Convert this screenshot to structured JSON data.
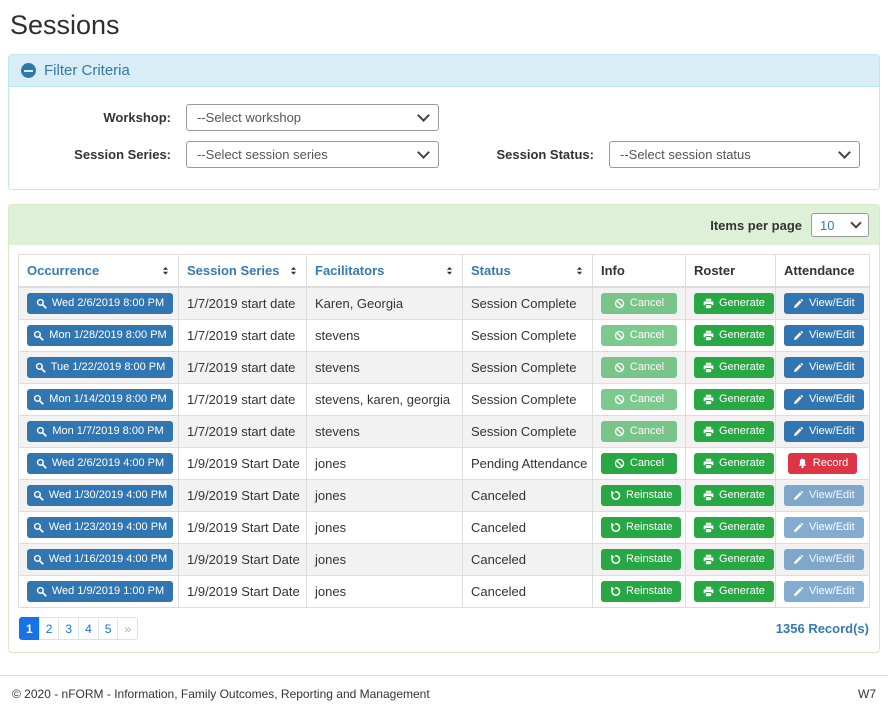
{
  "page_title": "Sessions",
  "filter": {
    "title": "Filter Criteria",
    "workshop": {
      "label": "Workshop:",
      "value": "--Select workshop"
    },
    "session_series": {
      "label": "Session Series:",
      "value": "--Select session series"
    },
    "session_status": {
      "label": "Session Status:",
      "value": "--Select session status"
    }
  },
  "table": {
    "items_per_page_label": "Items per page",
    "items_per_page_value": "10",
    "columns": [
      {
        "label": "Occurrence",
        "sortable": true
      },
      {
        "label": "Session Series",
        "sortable": true
      },
      {
        "label": "Facilitators",
        "sortable": true
      },
      {
        "label": "Status",
        "sortable": true
      },
      {
        "label": "Info",
        "sortable": false
      },
      {
        "label": "Roster",
        "sortable": false
      },
      {
        "label": "Attendance",
        "sortable": false
      }
    ],
    "rows": [
      {
        "occurrence": "Wed 2/6/2019 8:00 PM",
        "series": "1/7/2019 start date",
        "facilitators": "Karen, Georgia",
        "status": "Session Complete",
        "info": {
          "label": "Cancel",
          "icon": "ban-icon",
          "variant": "success",
          "disabled": true
        },
        "roster": {
          "label": "Generate",
          "icon": "printer-icon",
          "variant": "success",
          "disabled": false
        },
        "attendance": {
          "label": "View/Edit",
          "icon": "pencil-icon",
          "variant": "primary",
          "disabled": false
        }
      },
      {
        "occurrence": "Mon 1/28/2019 8:00 PM",
        "series": "1/7/2019 start date",
        "facilitators": "stevens",
        "status": "Session Complete",
        "info": {
          "label": "Cancel",
          "icon": "ban-icon",
          "variant": "success",
          "disabled": true
        },
        "roster": {
          "label": "Generate",
          "icon": "printer-icon",
          "variant": "success",
          "disabled": false
        },
        "attendance": {
          "label": "View/Edit",
          "icon": "pencil-icon",
          "variant": "primary",
          "disabled": false
        }
      },
      {
        "occurrence": "Tue 1/22/2019 8:00 PM",
        "series": "1/7/2019 start date",
        "facilitators": "stevens",
        "status": "Session Complete",
        "info": {
          "label": "Cancel",
          "icon": "ban-icon",
          "variant": "success",
          "disabled": true
        },
        "roster": {
          "label": "Generate",
          "icon": "printer-icon",
          "variant": "success",
          "disabled": false
        },
        "attendance": {
          "label": "View/Edit",
          "icon": "pencil-icon",
          "variant": "primary",
          "disabled": false
        }
      },
      {
        "occurrence": "Mon 1/14/2019 8:00 PM",
        "series": "1/7/2019 start date",
        "facilitators": "stevens, karen, georgia",
        "status": "Session Complete",
        "info": {
          "label": "Cancel",
          "icon": "ban-icon",
          "variant": "success",
          "disabled": true
        },
        "roster": {
          "label": "Generate",
          "icon": "printer-icon",
          "variant": "success",
          "disabled": false
        },
        "attendance": {
          "label": "View/Edit",
          "icon": "pencil-icon",
          "variant": "primary",
          "disabled": false
        }
      },
      {
        "occurrence": "Mon 1/7/2019 8:00 PM",
        "series": "1/7/2019 start date",
        "facilitators": "stevens",
        "status": "Session Complete",
        "info": {
          "label": "Cancel",
          "icon": "ban-icon",
          "variant": "success",
          "disabled": true
        },
        "roster": {
          "label": "Generate",
          "icon": "printer-icon",
          "variant": "success",
          "disabled": false
        },
        "attendance": {
          "label": "View/Edit",
          "icon": "pencil-icon",
          "variant": "primary",
          "disabled": false
        }
      },
      {
        "occurrence": "Wed 2/6/2019 4:00 PM",
        "series": "1/9/2019 Start Date",
        "facilitators": "jones",
        "status": "Pending Attendance",
        "info": {
          "label": "Cancel",
          "icon": "ban-icon",
          "variant": "success",
          "disabled": false
        },
        "roster": {
          "label": "Generate",
          "icon": "printer-icon",
          "variant": "success",
          "disabled": false
        },
        "attendance": {
          "label": "Record",
          "icon": "bell-icon",
          "variant": "danger",
          "disabled": false
        }
      },
      {
        "occurrence": "Wed 1/30/2019 4:00 PM",
        "series": "1/9/2019 Start Date",
        "facilitators": "jones",
        "status": "Canceled",
        "info": {
          "label": "Reinstate",
          "icon": "undo-icon",
          "variant": "success",
          "disabled": false
        },
        "roster": {
          "label": "Generate",
          "icon": "printer-icon",
          "variant": "success",
          "disabled": false
        },
        "attendance": {
          "label": "View/Edit",
          "icon": "pencil-icon",
          "variant": "primary",
          "disabled": true
        }
      },
      {
        "occurrence": "Wed 1/23/2019 4:00 PM",
        "series": "1/9/2019 Start Date",
        "facilitators": "jones",
        "status": "Canceled",
        "info": {
          "label": "Reinstate",
          "icon": "undo-icon",
          "variant": "success",
          "disabled": false
        },
        "roster": {
          "label": "Generate",
          "icon": "printer-icon",
          "variant": "success",
          "disabled": false
        },
        "attendance": {
          "label": "View/Edit",
          "icon": "pencil-icon",
          "variant": "primary",
          "disabled": true
        }
      },
      {
        "occurrence": "Wed 1/16/2019 4:00 PM",
        "series": "1/9/2019 Start Date",
        "facilitators": "jones",
        "status": "Canceled",
        "info": {
          "label": "Reinstate",
          "icon": "undo-icon",
          "variant": "success",
          "disabled": false
        },
        "roster": {
          "label": "Generate",
          "icon": "printer-icon",
          "variant": "success",
          "disabled": false
        },
        "attendance": {
          "label": "View/Edit",
          "icon": "pencil-icon",
          "variant": "primary",
          "disabled": true
        }
      },
      {
        "occurrence": "Wed 1/9/2019 1:00 PM",
        "series": "1/9/2019 Start Date",
        "facilitators": "jones",
        "status": "Canceled",
        "info": {
          "label": "Reinstate",
          "icon": "undo-icon",
          "variant": "success",
          "disabled": false
        },
        "roster": {
          "label": "Generate",
          "icon": "printer-icon",
          "variant": "success",
          "disabled": false
        },
        "attendance": {
          "label": "View/Edit",
          "icon": "pencil-icon",
          "variant": "primary",
          "disabled": true
        }
      }
    ],
    "pagination": {
      "pages": [
        "1",
        "2",
        "3",
        "4",
        "5",
        "»"
      ],
      "active": "1"
    },
    "record_count": "1356 Record(s)"
  },
  "colors": {
    "accent_blue": "#3276b1",
    "success_green": "#28a745",
    "danger_red": "#dc3545",
    "filter_header_bg": "#d9edf7",
    "filter_text": "#3179a8",
    "panel_green_bg": "#dff0d8",
    "link_blue": "#337ab7",
    "pagination_blue": "#1673e6"
  },
  "footer": {
    "copyright": "© 2020 - nFORM - Information, Family Outcomes, Reporting and Management",
    "env": "W7"
  }
}
